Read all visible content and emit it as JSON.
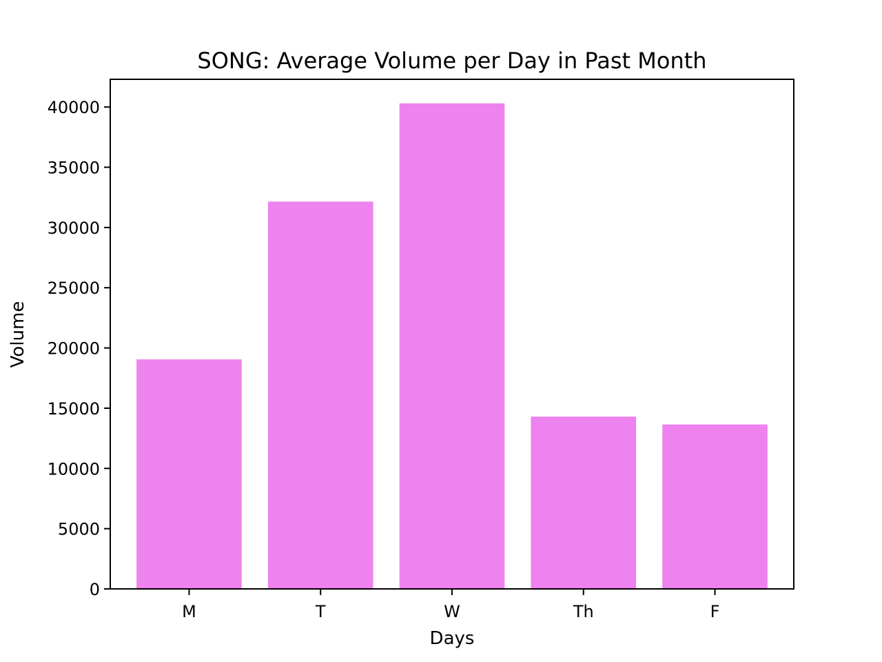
{
  "chart_data": {
    "type": "bar",
    "title": "SONG: Average Volume per Day in Past Month",
    "xlabel": "Days",
    "ylabel": "Volume",
    "categories": [
      "M",
      "T",
      "W",
      "Th",
      "F"
    ],
    "values": [
      19050,
      32150,
      40300,
      14300,
      13650
    ],
    "ylim": [
      0,
      42300
    ],
    "yticks": [
      0,
      5000,
      10000,
      15000,
      20000,
      25000,
      30000,
      35000,
      40000
    ],
    "bar_color": "#ee82ee",
    "grid": false,
    "legend": "none"
  }
}
